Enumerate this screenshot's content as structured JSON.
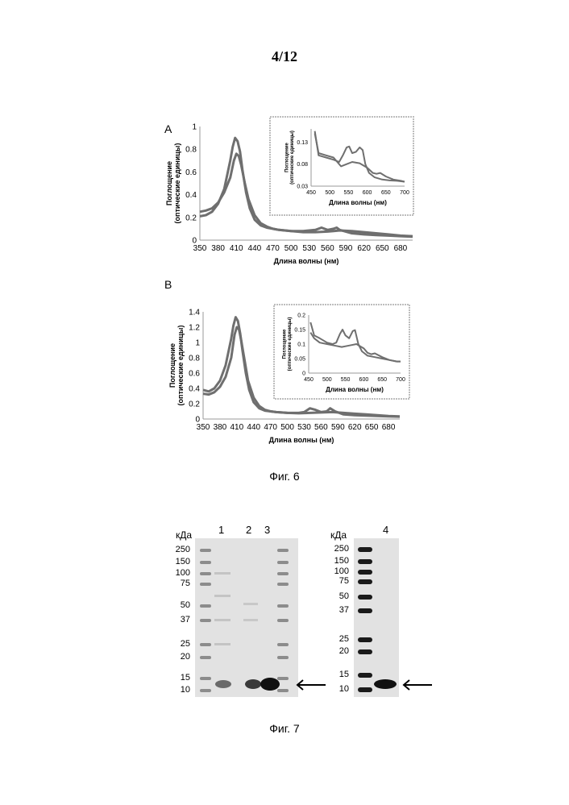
{
  "page": {
    "number": "4/12"
  },
  "fig6": {
    "caption": "Фиг. 6",
    "colors": {
      "curve": "#6f6f6f",
      "inset_border": "#bdbdbd",
      "axis": "#9a9a9a"
    },
    "chart_data": [
      {
        "panel": "A",
        "type": "line",
        "ylabel_line1": "Поглощение",
        "ylabel_line2": "(оптические единицы)",
        "xlabel": "Длина волны (нм)",
        "xlim": [
          350,
          700
        ],
        "ylim": [
          0,
          1
        ],
        "yticks": [
          "0",
          "0.2",
          "0.4",
          "0.6",
          "0.8",
          "1"
        ],
        "xticks": [
          "350",
          "380",
          "410",
          "440",
          "470",
          "500",
          "530",
          "560",
          "590",
          "620",
          "650",
          "680"
        ],
        "series": [
          {
            "x": [
              350,
              360,
              370,
              380,
              390,
              400,
              404,
              408,
              412,
              416,
              420,
              426,
              432,
              440,
              450,
              460,
              470,
              480,
              500,
              520,
              540,
              550,
              560,
              570,
              575,
              580,
              600,
              620,
              640,
              660,
              680,
              700
            ],
            "y": [
              0.21,
              0.22,
              0.25,
              0.32,
              0.45,
              0.7,
              0.82,
              0.9,
              0.87,
              0.78,
              0.62,
              0.42,
              0.28,
              0.18,
              0.13,
              0.11,
              0.1,
              0.09,
              0.08,
              0.08,
              0.09,
              0.11,
              0.09,
              0.1,
              0.11,
              0.09,
              0.06,
              0.05,
              0.045,
              0.04,
              0.035,
              0.03
            ]
          },
          {
            "x": [
              350,
              360,
              370,
              380,
              390,
              400,
              406,
              410,
              414,
              418,
              424,
              430,
              440,
              450,
              460,
              470,
              480,
              500,
              520,
              540,
              560,
              570,
              580,
              600,
              620,
              640,
              660,
              680,
              700
            ],
            "y": [
              0.25,
              0.26,
              0.28,
              0.33,
              0.42,
              0.55,
              0.7,
              0.76,
              0.74,
              0.66,
              0.5,
              0.36,
              0.22,
              0.15,
              0.12,
              0.1,
              0.09,
              0.08,
              0.07,
              0.07,
              0.075,
              0.08,
              0.085,
              0.08,
              0.07,
              0.06,
              0.05,
              0.04,
              0.035
            ]
          }
        ],
        "inset": {
          "xlabel": "Длина волны (нм)",
          "ylabel_line1": "Поглощение",
          "ylabel_line2": "(оптические единицы)",
          "xlim": [
            450,
            700
          ],
          "ylim": [
            0.03,
            0.16
          ],
          "yticks": [
            "0.03",
            "0.08",
            "0.13"
          ],
          "xticks": [
            "450",
            "500",
            "550",
            "600",
            "650",
            "700"
          ],
          "series": [
            {
              "x": [
                460,
                470,
                490,
                510,
                525,
                535,
                545,
                552,
                560,
                570,
                580,
                588,
                595,
                605,
                620,
                640,
                660,
                680,
                700
              ],
              "y": [
                0.155,
                0.1,
                0.095,
                0.09,
                0.085,
                0.1,
                0.118,
                0.12,
                0.105,
                0.108,
                0.118,
                0.112,
                0.08,
                0.06,
                0.05,
                0.045,
                0.043,
                0.042,
                0.04
              ]
            },
            {
              "x": [
                460,
                470,
                490,
                510,
                520,
                530,
                545,
                560,
                580,
                600,
                615,
                625,
                635,
                650,
                670,
                690,
                700
              ],
              "y": [
                0.15,
                0.105,
                0.1,
                0.095,
                0.085,
                0.075,
                0.08,
                0.085,
                0.082,
                0.072,
                0.06,
                0.058,
                0.06,
                0.052,
                0.045,
                0.042,
                0.04
              ]
            }
          ]
        }
      },
      {
        "panel": "B",
        "type": "line",
        "ylabel_line1": "Поглощение",
        "ylabel_line2": "(оптические единицы)",
        "xlabel": "Длина волны (нм)",
        "xlim": [
          350,
          700
        ],
        "ylim": [
          0,
          1.4
        ],
        "yticks": [
          "0",
          "0.2",
          "0.4",
          "0.6",
          "0.8",
          "1",
          "1.2",
          "1.4"
        ],
        "xticks": [
          "350",
          "380",
          "410",
          "440",
          "470",
          "500",
          "530",
          "560",
          "590",
          "620",
          "650",
          "680"
        ],
        "series": [
          {
            "x": [
              350,
              360,
              370,
              380,
              390,
              400,
              404,
              408,
              412,
              416,
              420,
              426,
              432,
              440,
              450,
              460,
              470,
              480,
              500,
              520,
              530,
              540,
              550,
              560,
              570,
              576,
              585,
              600,
              620,
              640,
              660,
              680,
              700
            ],
            "y": [
              0.38,
              0.36,
              0.4,
              0.5,
              0.7,
              1.05,
              1.22,
              1.33,
              1.28,
              1.12,
              0.9,
              0.6,
              0.38,
              0.22,
              0.14,
              0.11,
              0.1,
              0.09,
              0.08,
              0.08,
              0.09,
              0.14,
              0.12,
              0.09,
              0.1,
              0.14,
              0.1,
              0.06,
              0.05,
              0.045,
              0.04,
              0.035,
              0.03
            ]
          },
          {
            "x": [
              350,
              360,
              370,
              380,
              390,
              400,
              406,
              410,
              414,
              418,
              424,
              430,
              440,
              450,
              460,
              470,
              480,
              500,
              520,
              540,
              560,
              580,
              600,
              620,
              640,
              660,
              680,
              700
            ],
            "y": [
              0.33,
              0.32,
              0.35,
              0.42,
              0.55,
              0.8,
              1.1,
              1.2,
              1.17,
              1.02,
              0.76,
              0.5,
              0.28,
              0.17,
              0.12,
              0.1,
              0.09,
              0.08,
              0.075,
              0.08,
              0.085,
              0.09,
              0.08,
              0.07,
              0.06,
              0.05,
              0.04,
              0.035
            ]
          }
        ],
        "inset": {
          "xlabel": "Длина волны (нм)",
          "ylabel_line1": "Поглощение",
          "ylabel_line2": "(оптические единицы)",
          "xlim": [
            450,
            700
          ],
          "ylim": [
            0,
            0.2
          ],
          "yticks": [
            "0",
            "0.05",
            "0.1",
            "0.15",
            "0.2"
          ],
          "xticks": [
            "450",
            "500",
            "550",
            "600",
            "650",
            "700"
          ],
          "series": [
            {
              "x": [
                455,
                465,
                480,
                500,
                515,
                525,
                535,
                542,
                550,
                560,
                570,
                576,
                585,
                595,
                610,
                630,
                650,
                670,
                690,
                700
              ],
              "y": [
                0.175,
                0.13,
                0.12,
                0.105,
                0.1,
                0.105,
                0.135,
                0.15,
                0.13,
                0.12,
                0.145,
                0.148,
                0.1,
                0.075,
                0.06,
                0.055,
                0.05,
                0.045,
                0.04,
                0.04
              ]
            },
            {
              "x": [
                455,
                465,
                480,
                500,
                520,
                540,
                560,
                580,
                600,
                610,
                620,
                630,
                650,
                670,
                690,
                700
              ],
              "y": [
                0.14,
                0.12,
                0.105,
                0.1,
                0.095,
                0.09,
                0.095,
                0.1,
                0.085,
                0.07,
                0.065,
                0.068,
                0.055,
                0.045,
                0.04,
                0.04
              ]
            }
          ]
        }
      }
    ]
  },
  "fig7": {
    "caption": "Фиг. 7",
    "kda_label": "кДа",
    "arrow_icon": "arrow-left-icon",
    "left_gel": {
      "lane_labels": [
        "1",
        "2",
        "3"
      ],
      "markers": [
        "250",
        "150",
        "100",
        "75",
        "50",
        "37",
        "25",
        "20",
        "15",
        "10"
      ]
    },
    "right_gel": {
      "lane_labels": [
        "4"
      ],
      "markers": [
        "250",
        "150",
        "100",
        "75",
        "50",
        "37",
        "25",
        "20",
        "15",
        "10"
      ]
    }
  }
}
